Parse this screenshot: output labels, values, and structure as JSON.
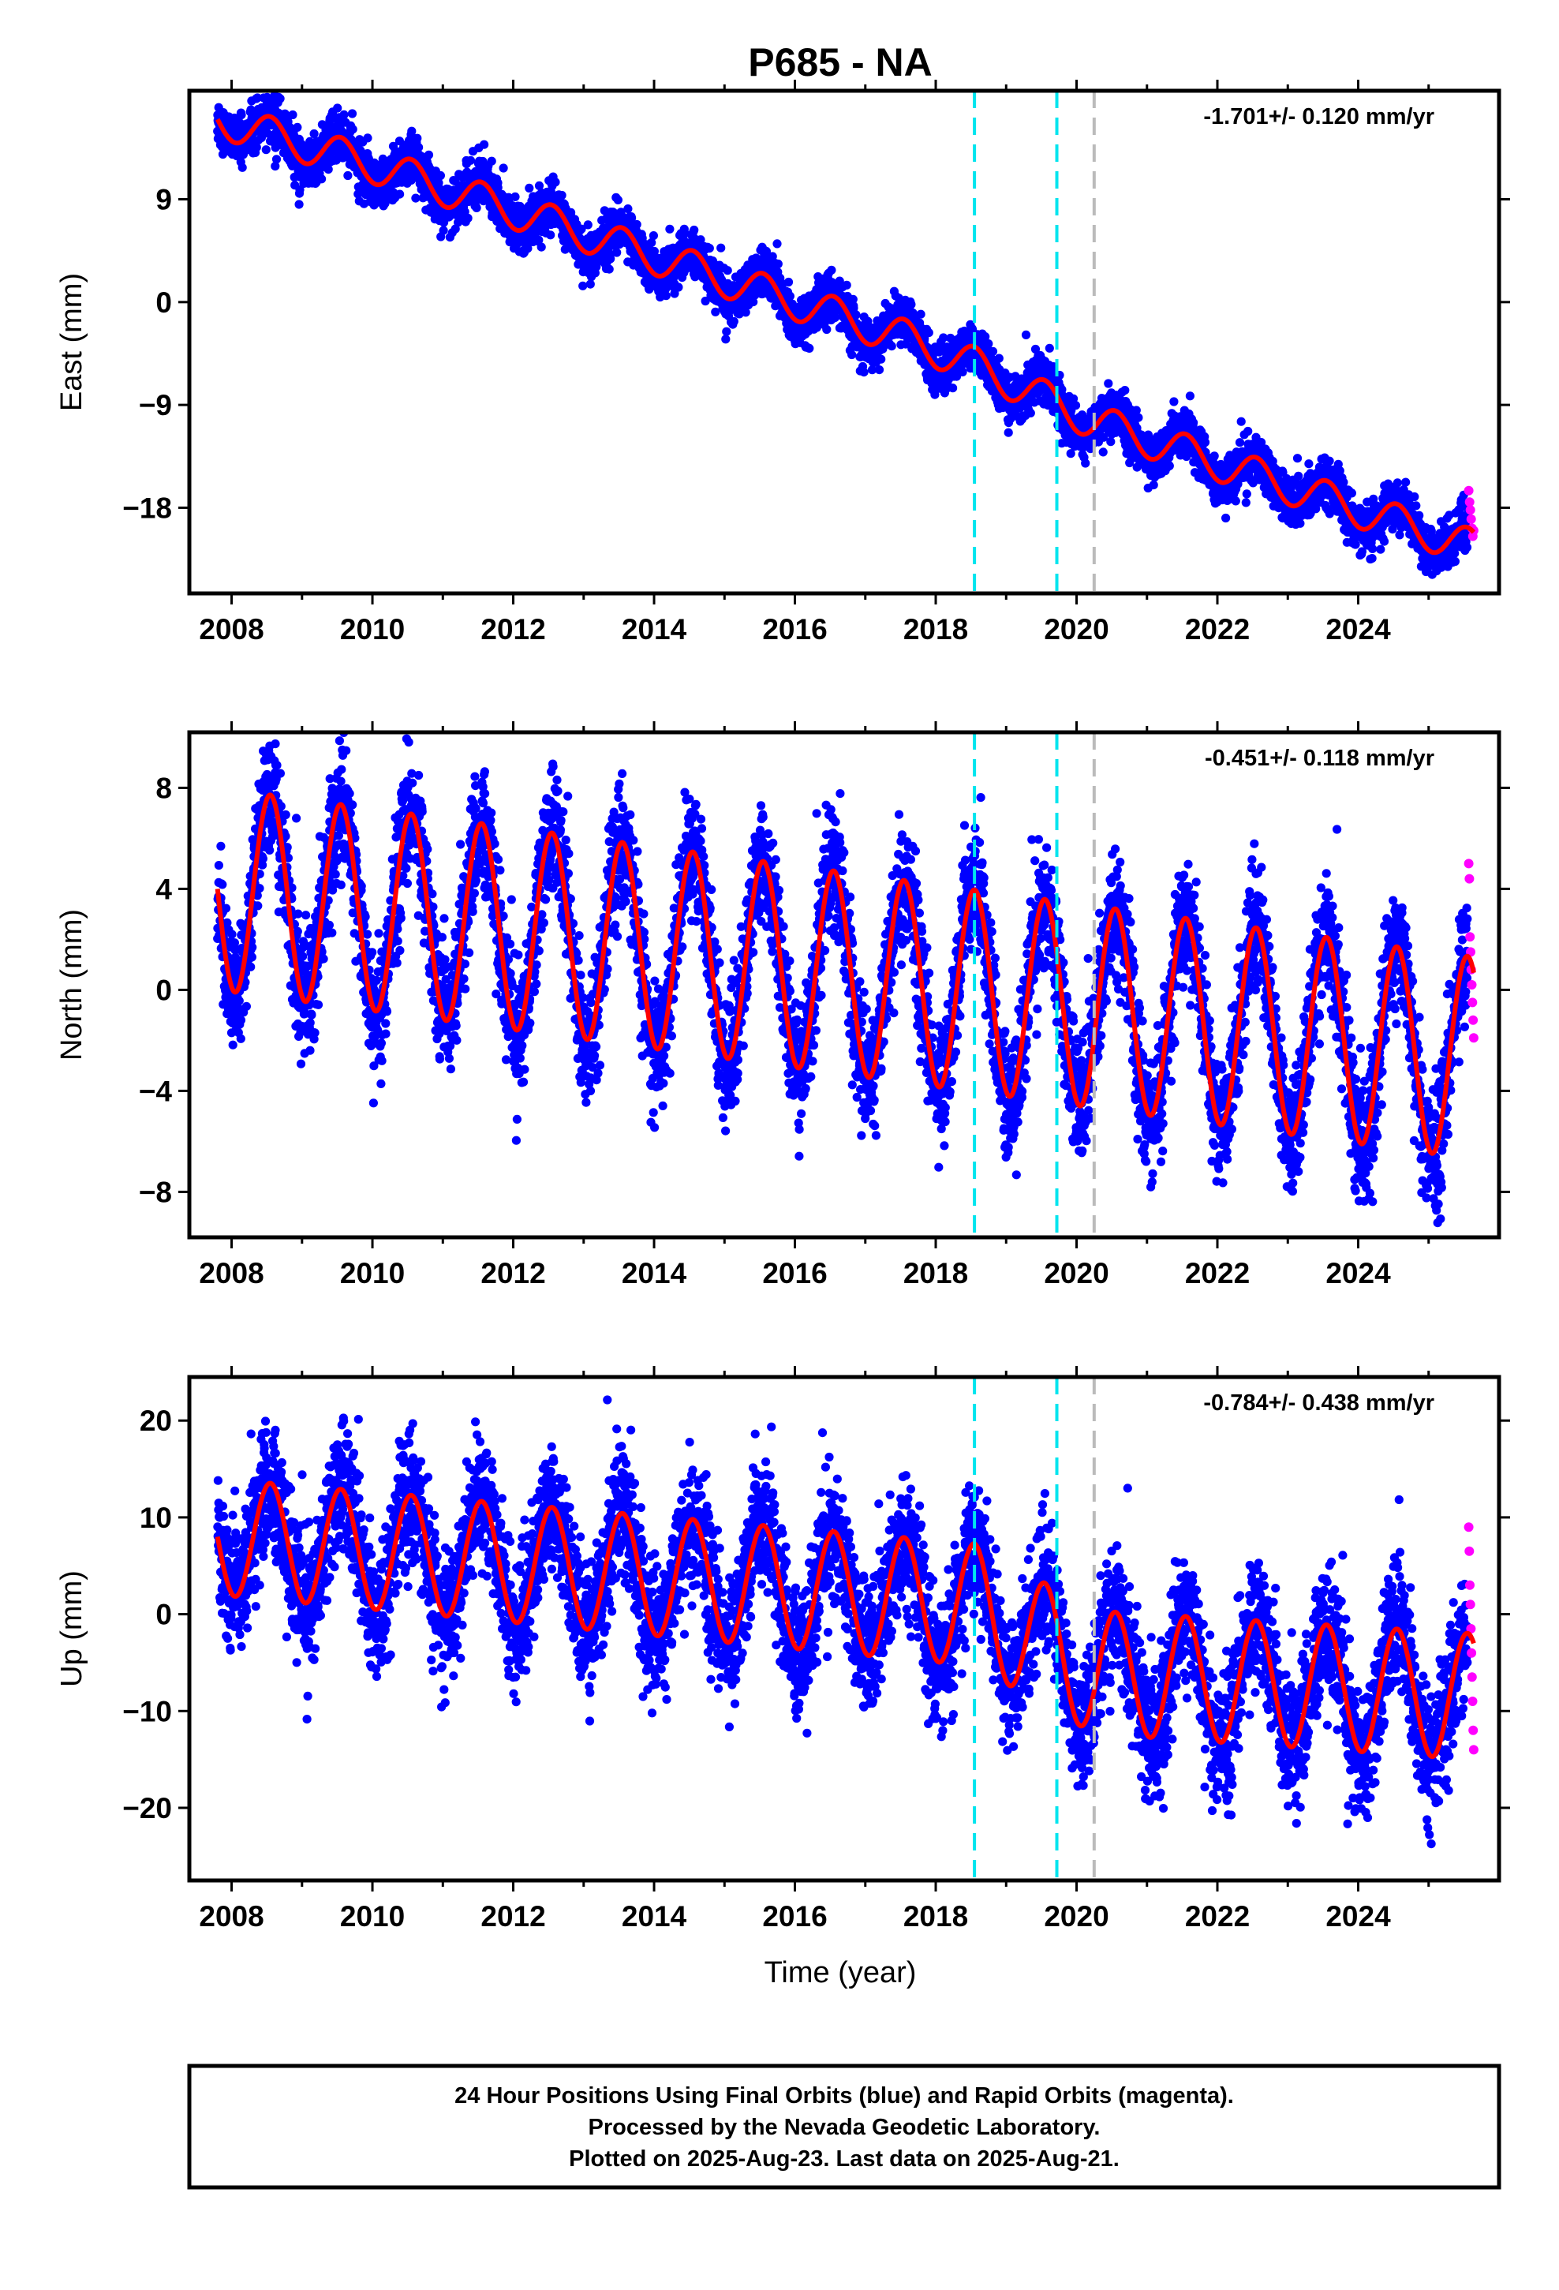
{
  "chart_data": {
    "type": "scatter",
    "title": "P685 - NA",
    "x_label": "Time (year)",
    "x_ticks": [
      2008,
      2010,
      2012,
      2014,
      2016,
      2018,
      2020,
      2022,
      2024
    ],
    "x_range": [
      2007.4,
      2026.0
    ],
    "data_span": [
      2007.8,
      2025.64
    ],
    "rapid_start": 2025.55,
    "event_lines": [
      {
        "x": 2018.55,
        "color": "#00e5ee",
        "style": "dashed"
      },
      {
        "x": 2019.72,
        "color": "#00e5ee",
        "style": "dashed"
      },
      {
        "x": 2020.25,
        "color": "#bbbbbb",
        "style": "dashed"
      }
    ],
    "colors": {
      "final": "#0000ff",
      "rapid": "#ff00ff",
      "model": "#ff0000"
    },
    "panels": [
      {
        "name": "East",
        "y_label": "East (mm)",
        "y_ticks": [
          9,
          0,
          -9,
          -18
        ],
        "y_tick_labels": [
          "9",
          "0",
          "−9",
          "−18"
        ],
        "y_range": [
          -25.5,
          18.5
        ],
        "rate_text": "-1.701+/- 0.120 mm/yr",
        "trend": [
          [
            2007.8,
            16.0
          ],
          [
            2010,
            12.0
          ],
          [
            2014,
            4.0
          ],
          [
            2017.6,
            -3.2
          ],
          [
            2018.55,
            -5.5
          ],
          [
            2020.25,
            -10.5
          ],
          [
            2025.64,
            -21.5
          ]
        ],
        "offsets": [
          {
            "x": 2018.55,
            "dy": -1.0
          }
        ],
        "season_amp_start": 1.6,
        "season_amp_end": 1.6,
        "noise": 1.0,
        "rapid_values": [
          -16.5,
          -17.5,
          -18.2,
          -19.0,
          -19.8,
          -20.5,
          -20.0
        ]
      },
      {
        "name": "North",
        "y_label": "North (mm)",
        "y_ticks": [
          8,
          4,
          0,
          -4,
          -8
        ],
        "y_tick_labels": [
          "8",
          "4",
          "0",
          "−4",
          "−8"
        ],
        "y_range": [
          -9.8,
          10.2
        ],
        "rate_text": "-0.451+/- 0.118 mm/yr",
        "trend": [
          [
            2007.8,
            4.0
          ],
          [
            2025.64,
            -2.7
          ]
        ],
        "offsets": [],
        "season_amp_start": 4.0,
        "season_amp_end": 4.0,
        "noise": 1.2,
        "rapid_values": [
          5.0,
          4.4,
          2.1,
          1.5,
          0.8,
          0.2,
          -0.5,
          -1.2,
          -1.9
        ]
      },
      {
        "name": "Up",
        "y_label": "Up (mm)",
        "y_ticks": [
          20,
          10,
          0,
          -10,
          -20
        ],
        "y_tick_labels": [
          "20",
          "10",
          "0",
          "−10",
          "−20"
        ],
        "y_range": [
          -27.5,
          24.5
        ],
        "rate_text": "-0.784+/- 0.438 mm/yr",
        "trend": [
          [
            2007.8,
            8.0
          ],
          [
            2018.55,
            1.0
          ],
          [
            2020.25,
            -6.0
          ],
          [
            2025.64,
            -8.5
          ]
        ],
        "offsets": [
          {
            "x": 2018.55,
            "dy": -2.0
          }
        ],
        "season_amp_start": 6.0,
        "season_amp_end": 6.5,
        "noise": 3.3,
        "rapid_values": [
          9.0,
          6.5,
          3.0,
          1.0,
          -1.5,
          -4.0,
          -6.5,
          -9.0,
          -12.0,
          -14.0
        ]
      }
    ]
  },
  "footer": {
    "lines": [
      "24 Hour Positions Using Final Orbits (blue) and Rapid Orbits (magenta).",
      "Processed by the Nevada Geodetic Laboratory.",
      "Plotted on 2025-Aug-23. Last data on 2025-Aug-21."
    ]
  }
}
